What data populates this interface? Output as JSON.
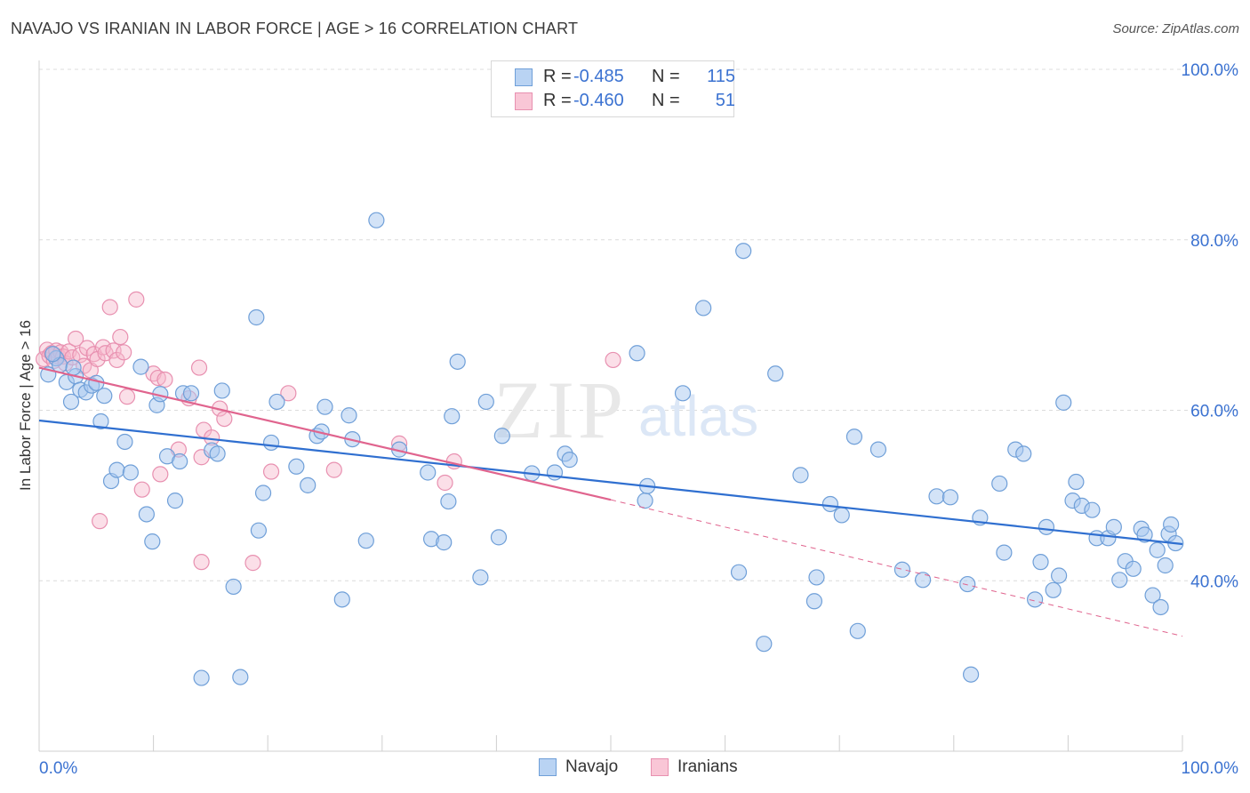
{
  "title": "NAVAJO VS IRANIAN IN LABOR FORCE | AGE > 16 CORRELATION CHART",
  "source": "Source: ZipAtlas.com",
  "colors": {
    "navajo_fill": "#a8c8f0",
    "navajo_stroke": "#6f9fd8",
    "navajo_line": "#2f6fd0",
    "iranian_fill": "#f6b8cc",
    "iranian_stroke": "#e890b0",
    "iranian_line": "#e0648e",
    "accent_text": "#3b72d1",
    "grid": "#dcdcdc"
  },
  "legend": {
    "rows": [
      {
        "r_label": "R =",
        "r_value": "-0.485",
        "n_label": "N =",
        "n_value": "115",
        "series": "Navajo"
      },
      {
        "r_label": "R =",
        "r_value": "-0.460",
        "n_label": "N =",
        "n_value": "51",
        "series": "Iranians"
      }
    ]
  },
  "chart_data": {
    "type": "scatter",
    "xlabel": "",
    "ylabel": "In Labor Force | Age > 16",
    "xlim": [
      0,
      100
    ],
    "ylim": [
      20,
      100
    ],
    "x_tick_labels": [
      "0.0%",
      "100.0%"
    ],
    "y_tick_labels": [
      "40.0%",
      "60.0%",
      "80.0%",
      "100.0%"
    ],
    "y_ticks": [
      40,
      60,
      80,
      100
    ],
    "grid": true,
    "legend_position": "top-center and bottom-center",
    "watermark": "ZIPatlas",
    "series": [
      {
        "name": "Navajo",
        "trendline": {
          "x": [
            0,
            100
          ],
          "y": [
            58.8,
            44.3
          ]
        },
        "points": [
          [
            0.8,
            64.2
          ],
          [
            1.5,
            66.1
          ],
          [
            1.8,
            65.3
          ],
          [
            2.4,
            63.3
          ],
          [
            2.8,
            61.0
          ],
          [
            3.2,
            64.0
          ],
          [
            3.6,
            62.4
          ],
          [
            4.1,
            62.1
          ],
          [
            4.6,
            62.9
          ],
          [
            5.4,
            58.7
          ],
          [
            5.7,
            61.7
          ],
          [
            6.3,
            51.7
          ],
          [
            6.8,
            53.0
          ],
          [
            7.5,
            56.3
          ],
          [
            8.0,
            52.7
          ],
          [
            8.9,
            65.1
          ],
          [
            9.4,
            47.8
          ],
          [
            9.9,
            44.6
          ],
          [
            10.3,
            60.6
          ],
          [
            10.6,
            61.9
          ],
          [
            11.2,
            54.6
          ],
          [
            11.9,
            49.4
          ],
          [
            12.3,
            54.0
          ],
          [
            12.6,
            62.0
          ],
          [
            13.3,
            62.0
          ],
          [
            14.2,
            28.6
          ],
          [
            15.1,
            55.3
          ],
          [
            15.6,
            54.9
          ],
          [
            16.0,
            62.3
          ],
          [
            17.0,
            39.3
          ],
          [
            17.6,
            28.7
          ],
          [
            19.0,
            70.9
          ],
          [
            19.2,
            45.9
          ],
          [
            19.6,
            50.3
          ],
          [
            20.3,
            56.2
          ],
          [
            20.8,
            61.0
          ],
          [
            22.5,
            53.4
          ],
          [
            23.5,
            51.2
          ],
          [
            24.3,
            57.0
          ],
          [
            24.7,
            57.5
          ],
          [
            25.0,
            60.4
          ],
          [
            26.5,
            37.8
          ],
          [
            27.1,
            59.4
          ],
          [
            27.4,
            56.6
          ],
          [
            28.6,
            44.7
          ],
          [
            29.5,
            82.3
          ],
          [
            31.5,
            55.4
          ],
          [
            34.0,
            52.7
          ],
          [
            34.3,
            44.9
          ],
          [
            35.4,
            44.5
          ],
          [
            35.8,
            49.3
          ],
          [
            36.1,
            59.3
          ],
          [
            36.6,
            65.7
          ],
          [
            38.6,
            40.4
          ],
          [
            39.1,
            61.0
          ],
          [
            40.2,
            45.1
          ],
          [
            40.5,
            57.0
          ],
          [
            43.1,
            52.6
          ],
          [
            45.1,
            52.7
          ],
          [
            46.0,
            54.9
          ],
          [
            46.4,
            54.2
          ],
          [
            52.3,
            66.7
          ],
          [
            53.0,
            49.4
          ],
          [
            53.2,
            51.1
          ],
          [
            56.3,
            62.0
          ],
          [
            58.1,
            72.0
          ],
          [
            61.2,
            41.0
          ],
          [
            61.6,
            78.7
          ],
          [
            63.4,
            32.6
          ],
          [
            64.4,
            64.3
          ],
          [
            66.6,
            52.4
          ],
          [
            67.8,
            37.6
          ],
          [
            68.0,
            40.4
          ],
          [
            69.2,
            49.0
          ],
          [
            70.2,
            47.7
          ],
          [
            71.3,
            56.9
          ],
          [
            71.6,
            34.1
          ],
          [
            73.4,
            55.4
          ],
          [
            75.5,
            41.3
          ],
          [
            77.3,
            40.1
          ],
          [
            78.5,
            49.9
          ],
          [
            79.7,
            49.8
          ],
          [
            81.2,
            39.6
          ],
          [
            81.5,
            29.0
          ],
          [
            82.3,
            47.4
          ],
          [
            84.0,
            51.4
          ],
          [
            84.4,
            43.3
          ],
          [
            85.4,
            55.4
          ],
          [
            86.1,
            54.9
          ],
          [
            87.1,
            37.8
          ],
          [
            87.6,
            42.2
          ],
          [
            88.1,
            46.3
          ],
          [
            88.7,
            38.9
          ],
          [
            89.2,
            40.6
          ],
          [
            89.6,
            60.9
          ],
          [
            90.4,
            49.4
          ],
          [
            90.7,
            51.6
          ],
          [
            91.2,
            48.8
          ],
          [
            92.1,
            48.3
          ],
          [
            92.5,
            45.0
          ],
          [
            93.5,
            45.0
          ],
          [
            94.0,
            46.3
          ],
          [
            94.5,
            40.1
          ],
          [
            95.0,
            42.3
          ],
          [
            95.7,
            41.4
          ],
          [
            96.4,
            46.1
          ],
          [
            96.7,
            45.4
          ],
          [
            97.4,
            38.3
          ],
          [
            97.8,
            43.6
          ],
          [
            98.1,
            36.9
          ],
          [
            98.5,
            41.8
          ],
          [
            98.8,
            45.5
          ],
          [
            99.0,
            46.6
          ],
          [
            99.4,
            44.4
          ],
          [
            3.0,
            65.0
          ],
          [
            1.2,
            66.6
          ],
          [
            5.0,
            63.2
          ]
        ]
      },
      {
        "name": "Iranians",
        "trendline": {
          "x": [
            0,
            50
          ],
          "y": [
            65.0,
            49.5
          ]
        },
        "trendline_dashed": {
          "x": [
            50,
            100
          ],
          "y": [
            49.5,
            33.5
          ]
        },
        "points": [
          [
            0.4,
            66.0
          ],
          [
            0.7,
            67.1
          ],
          [
            0.9,
            66.4
          ],
          [
            1.1,
            66.7
          ],
          [
            1.3,
            65.8
          ],
          [
            1.5,
            67.0
          ],
          [
            1.7,
            66.3
          ],
          [
            1.9,
            66.8
          ],
          [
            2.1,
            66.3
          ],
          [
            2.3,
            65.5
          ],
          [
            2.6,
            66.9
          ],
          [
            2.9,
            66.2
          ],
          [
            3.2,
            68.4
          ],
          [
            3.6,
            66.5
          ],
          [
            3.9,
            65.2
          ],
          [
            4.2,
            67.3
          ],
          [
            4.5,
            64.7
          ],
          [
            4.8,
            66.6
          ],
          [
            5.1,
            66.0
          ],
          [
            5.3,
            47.0
          ],
          [
            5.6,
            67.4
          ],
          [
            5.8,
            66.7
          ],
          [
            6.2,
            72.1
          ],
          [
            6.5,
            67.0
          ],
          [
            6.8,
            65.9
          ],
          [
            7.1,
            68.6
          ],
          [
            7.4,
            66.8
          ],
          [
            7.7,
            61.6
          ],
          [
            8.5,
            73.0
          ],
          [
            9.0,
            50.7
          ],
          [
            10.0,
            64.3
          ],
          [
            10.4,
            63.8
          ],
          [
            10.6,
            52.5
          ],
          [
            11.0,
            63.6
          ],
          [
            12.2,
            55.4
          ],
          [
            13.1,
            61.4
          ],
          [
            14.0,
            65.0
          ],
          [
            14.2,
            42.2
          ],
          [
            14.4,
            57.7
          ],
          [
            15.1,
            56.8
          ],
          [
            15.8,
            60.2
          ],
          [
            16.2,
            59.0
          ],
          [
            18.7,
            42.1
          ],
          [
            20.3,
            52.8
          ],
          [
            21.8,
            62.0
          ],
          [
            25.8,
            53.0
          ],
          [
            31.5,
            56.1
          ],
          [
            35.5,
            51.5
          ],
          [
            36.3,
            54.0
          ],
          [
            50.2,
            65.9
          ],
          [
            14.2,
            54.5
          ]
        ]
      }
    ]
  },
  "bottom_legend": [
    "Navajo",
    "Iranians"
  ]
}
